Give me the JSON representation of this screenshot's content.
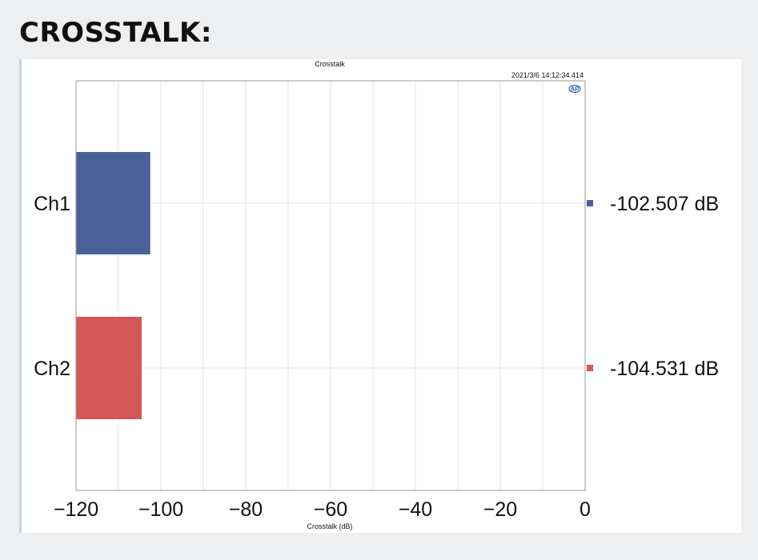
{
  "heading": "CROSSTALK:",
  "chart_data": {
    "type": "bar",
    "orientation": "horizontal",
    "title": "Crosstalk",
    "timestamp": "2021/3/6 14:12:34.414",
    "logo_text": "AP",
    "xlabel": "Crosstalk (dB)",
    "ylabel": "",
    "xlim": [
      -120,
      0
    ],
    "xticks": [
      -120,
      -100,
      -80,
      -60,
      -40,
      -20,
      0
    ],
    "grid": true,
    "categories": [
      "Ch1",
      "Ch2"
    ],
    "values": [
      -102.507,
      -104.531
    ],
    "value_labels": [
      "-102.507 dB",
      "-104.531 dB"
    ],
    "colors": [
      "#4a6198",
      "#d25755"
    ]
  }
}
